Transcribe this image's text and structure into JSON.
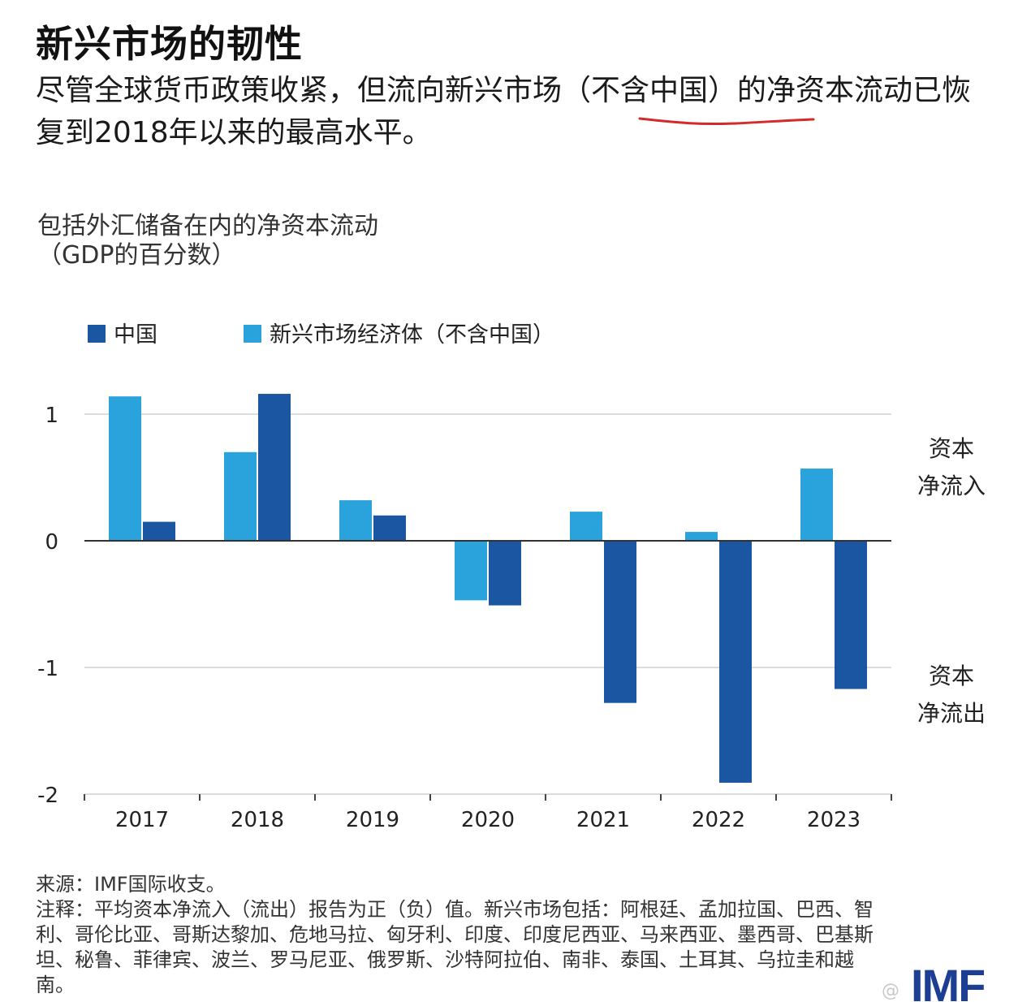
{
  "headline": "新兴市场的韧性",
  "subtitle": "尽管全球货币政策收紧，但流向新兴市场（不含中国）的净资本流动已恢复到2018年以来的最高水平。",
  "chart_data": {
    "type": "bar",
    "title": "包括外汇储备在内的净资本流动",
    "subtitle": "（GDP的百分数）",
    "categories": [
      "2017",
      "2018",
      "2019",
      "2020",
      "2021",
      "2022",
      "2023"
    ],
    "series": [
      {
        "name": "新兴市场经济体（不含中国）",
        "color": "#2aa3dc",
        "values": [
          1.14,
          0.7,
          0.32,
          -0.47,
          0.23,
          0.07,
          0.57
        ]
      },
      {
        "name": "中国",
        "color": "#1b56a2",
        "values": [
          0.15,
          1.16,
          0.2,
          -0.51,
          -1.28,
          -1.91,
          -1.17
        ]
      }
    ],
    "ylim": [
      -2,
      1.2
    ],
    "yticks": [
      "1",
      "0",
      "-1",
      "-2"
    ],
    "ytick_values": [
      1,
      0,
      -1,
      -2
    ],
    "legend_order": [
      "中国",
      "新兴市场经济体（不含中国）"
    ],
    "legend_position": "top-left",
    "grid": true,
    "annotations": {
      "inflow": [
        "资本",
        "净流入"
      ],
      "outflow": [
        "资本",
        "净流出"
      ]
    }
  },
  "footnote": {
    "source": "来源：IMF国际收支。",
    "note": "注释：平均资本净流入（流出）报告为正（负）值。新兴市场包括：阿根廷、孟加拉国、巴西、智利、哥伦比亚、哥斯达黎加、危地马拉、匈牙利、印度、印度尼西亚、马来西亚、墨西哥、巴基斯坦、秘鲁、菲律宾、波兰、罗马尼亚、俄罗斯、沙特阿拉伯、南非、泰国、土耳其、乌拉圭和越南。"
  },
  "logo": "IMF",
  "colors": {
    "china": "#1b56a2",
    "em_ex_china": "#2aa3dc",
    "highlight_underline": "#d42a2a",
    "logo": "#1c3f94"
  }
}
